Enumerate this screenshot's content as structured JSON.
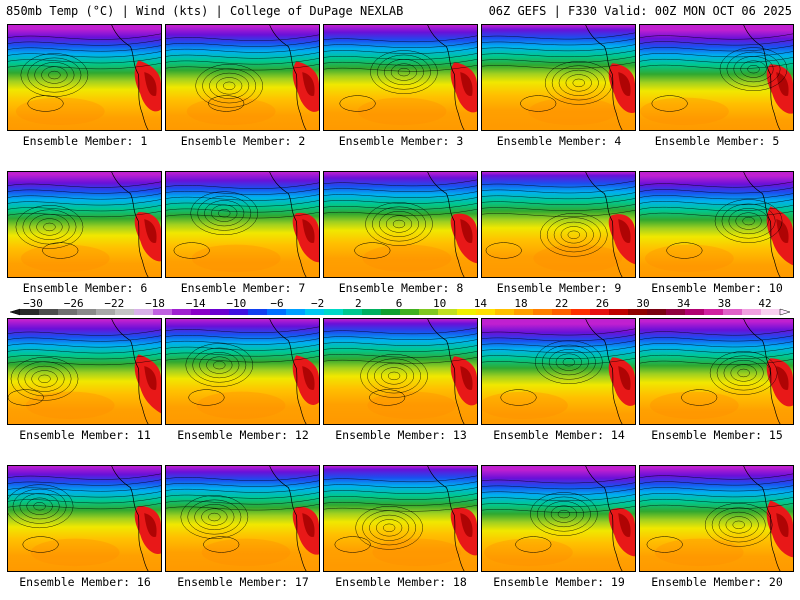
{
  "header": {
    "left": "850mb Temp (°C) | Wind (kts) | College of DuPage NEXLAB",
    "right": "06Z GEFS | F330 Valid: 00Z MON OCT 06 2025"
  },
  "members": [
    {
      "label": "Ensemble Member: 1"
    },
    {
      "label": "Ensemble Member: 2"
    },
    {
      "label": "Ensemble Member: 3"
    },
    {
      "label": "Ensemble Member: 4"
    },
    {
      "label": "Ensemble Member: 5"
    },
    {
      "label": "Ensemble Member: 6"
    },
    {
      "label": "Ensemble Member: 7"
    },
    {
      "label": "Ensemble Member: 8"
    },
    {
      "label": "Ensemble Member: 9"
    },
    {
      "label": "Ensemble Member: 10"
    },
    {
      "label": "Ensemble Member: 11"
    },
    {
      "label": "Ensemble Member: 12"
    },
    {
      "label": "Ensemble Member: 13"
    },
    {
      "label": "Ensemble Member: 14"
    },
    {
      "label": "Ensemble Member: 15"
    },
    {
      "label": "Ensemble Member: 16"
    },
    {
      "label": "Ensemble Member: 17"
    },
    {
      "label": "Ensemble Member: 18"
    },
    {
      "label": "Ensemble Member: 19"
    },
    {
      "label": "Ensemble Member: 20"
    }
  ],
  "colorbar": {
    "labels": [
      "−30",
      "−26",
      "−22",
      "−18",
      "−14",
      "−10",
      "−6",
      "−2",
      "2",
      "6",
      "10",
      "14",
      "18",
      "22",
      "26",
      "30",
      "34",
      "38",
      "42"
    ],
    "colors": [
      "#2a2a2a",
      "#4d4d4d",
      "#707070",
      "#8a8a8a",
      "#a8a8a8",
      "#c4c4c4",
      "#d8b0e8",
      "#c060e0",
      "#a020d0",
      "#8a00c8",
      "#6a00d0",
      "#4010e0",
      "#1040f0",
      "#0070ff",
      "#00a0ff",
      "#00c8f0",
      "#00d8c8",
      "#00c890",
      "#00b060",
      "#10a030",
      "#40b020",
      "#80c820",
      "#c0e020",
      "#f0f000",
      "#ffe000",
      "#ffc000",
      "#ffa000",
      "#ff8000",
      "#ff6000",
      "#ff3000",
      "#e81010",
      "#c00000",
      "#900000",
      "#7a0010",
      "#900040",
      "#b00070",
      "#d020a0",
      "#e060c8",
      "#f0a0e0",
      "#f8d0f0"
    ]
  }
}
